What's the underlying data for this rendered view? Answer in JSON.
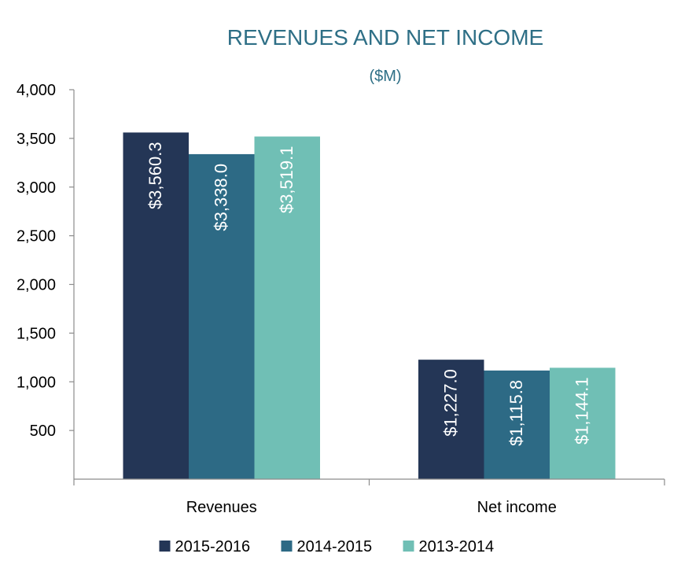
{
  "chart_data": {
    "type": "bar",
    "title": "REVENUES AND NET INCOME",
    "subtitle": "($M)",
    "xlabel": "",
    "ylabel": "",
    "categories": [
      "Revenues",
      "Net income"
    ],
    "series": [
      {
        "name": "2015-2016",
        "values": [
          3560.3,
          1227.0
        ],
        "labels": [
          "$3,560.3",
          "$1,227.0"
        ],
        "color": "#243656"
      },
      {
        "name": "2014-2015",
        "values": [
          3338.0,
          1115.8
        ],
        "labels": [
          "$3,338.0",
          "$1,115.8"
        ],
        "color": "#2d6a85"
      },
      {
        "name": "2013-2014",
        "values": [
          3519.1,
          1144.1
        ],
        "labels": [
          "$3,519.1",
          "$1,144.1"
        ],
        "color": "#70bfb5"
      }
    ],
    "ylim": [
      0,
      4000
    ],
    "yticks": [
      500,
      1000,
      1500,
      2000,
      2500,
      3000,
      3500,
      4000
    ],
    "ytick_labels": [
      "500",
      "1,000",
      "1,500",
      "2,000",
      "2,500",
      "3,000",
      "3,500",
      "4,000"
    ],
    "grid": false,
    "legend_position": "bottom",
    "title_color": "#2e6f86"
  }
}
